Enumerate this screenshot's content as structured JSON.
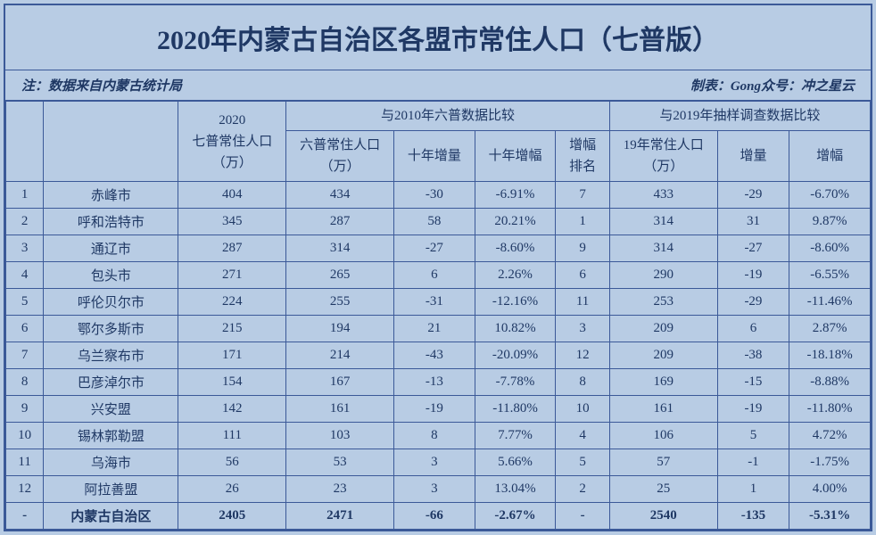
{
  "title": "2020年内蒙古自治区各盟市常住人口（七普版）",
  "note_left": "注：数据来自内蒙古统计局",
  "note_right": "制表：Gong众号：冲之星云",
  "headers": {
    "pop2020": "2020\n七普常住人口\n（万）",
    "group2010": "与2010年六普数据比较",
    "group2019": "与2019年抽样调查数据比较",
    "pop2010": "六普常住人口\n（万）",
    "inc10": "十年增量",
    "rate10": "十年增幅",
    "rankinc": "增幅\n排名",
    "pop2019": "19年常住人口\n（万）",
    "inc19": "增量",
    "rate19": "增幅"
  },
  "rows": [
    {
      "rank": "1",
      "name": "赤峰市",
      "pop2020": "404",
      "pop2010": "434",
      "inc10": "-30",
      "rate10": "-6.91%",
      "rankinc": "7",
      "pop2019": "433",
      "inc19": "-29",
      "rate19": "-6.70%"
    },
    {
      "rank": "2",
      "name": "呼和浩特市",
      "pop2020": "345",
      "pop2010": "287",
      "inc10": "58",
      "rate10": "20.21%",
      "rankinc": "1",
      "pop2019": "314",
      "inc19": "31",
      "rate19": "9.87%"
    },
    {
      "rank": "3",
      "name": "通辽市",
      "pop2020": "287",
      "pop2010": "314",
      "inc10": "-27",
      "rate10": "-8.60%",
      "rankinc": "9",
      "pop2019": "314",
      "inc19": "-27",
      "rate19": "-8.60%"
    },
    {
      "rank": "4",
      "name": "包头市",
      "pop2020": "271",
      "pop2010": "265",
      "inc10": "6",
      "rate10": "2.26%",
      "rankinc": "6",
      "pop2019": "290",
      "inc19": "-19",
      "rate19": "-6.55%"
    },
    {
      "rank": "5",
      "name": "呼伦贝尔市",
      "pop2020": "224",
      "pop2010": "255",
      "inc10": "-31",
      "rate10": "-12.16%",
      "rankinc": "11",
      "pop2019": "253",
      "inc19": "-29",
      "rate19": "-11.46%"
    },
    {
      "rank": "6",
      "name": "鄂尔多斯市",
      "pop2020": "215",
      "pop2010": "194",
      "inc10": "21",
      "rate10": "10.82%",
      "rankinc": "3",
      "pop2019": "209",
      "inc19": "6",
      "rate19": "2.87%"
    },
    {
      "rank": "7",
      "name": "乌兰察布市",
      "pop2020": "171",
      "pop2010": "214",
      "inc10": "-43",
      "rate10": "-20.09%",
      "rankinc": "12",
      "pop2019": "209",
      "inc19": "-38",
      "rate19": "-18.18%"
    },
    {
      "rank": "8",
      "name": "巴彦淖尔市",
      "pop2020": "154",
      "pop2010": "167",
      "inc10": "-13",
      "rate10": "-7.78%",
      "rankinc": "8",
      "pop2019": "169",
      "inc19": "-15",
      "rate19": "-8.88%"
    },
    {
      "rank": "9",
      "name": "兴安盟",
      "pop2020": "142",
      "pop2010": "161",
      "inc10": "-19",
      "rate10": "-11.80%",
      "rankinc": "10",
      "pop2019": "161",
      "inc19": "-19",
      "rate19": "-11.80%"
    },
    {
      "rank": "10",
      "name": "锡林郭勒盟",
      "pop2020": "111",
      "pop2010": "103",
      "inc10": "8",
      "rate10": "7.77%",
      "rankinc": "4",
      "pop2019": "106",
      "inc19": "5",
      "rate19": "4.72%"
    },
    {
      "rank": "11",
      "name": "乌海市",
      "pop2020": "56",
      "pop2010": "53",
      "inc10": "3",
      "rate10": "5.66%",
      "rankinc": "5",
      "pop2019": "57",
      "inc19": "-1",
      "rate19": "-1.75%"
    },
    {
      "rank": "12",
      "name": "阿拉善盟",
      "pop2020": "26",
      "pop2010": "23",
      "inc10": "3",
      "rate10": "13.04%",
      "rankinc": "2",
      "pop2019": "25",
      "inc19": "1",
      "rate19": "4.00%"
    }
  ],
  "total": {
    "rank": "-",
    "name": "内蒙古自治区",
    "pop2020": "2405",
    "pop2010": "2471",
    "inc10": "-66",
    "rate10": "-2.67%",
    "rankinc": "-",
    "pop2019": "2540",
    "inc19": "-135",
    "rate19": "-5.31%"
  },
  "colors": {
    "background": "#b8cce4",
    "border": "#3b5998",
    "text": "#1f3864"
  }
}
